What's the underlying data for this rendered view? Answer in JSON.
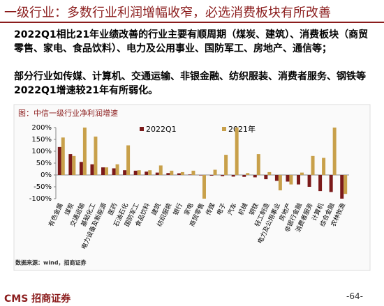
{
  "header": {
    "title": "一级行业：多数行业利润增幅收窄，必选消费板块有所改善"
  },
  "paragraphs": [
    "2022Q1相比21年业绩改善的行业主要有顺周期（煤炭、建筑）、消费板块（商贸零售、家电、食品饮料）、电力及公用事业、国防军工、房地产、通信等；",
    "部分行业如传媒、计算机、交通运输、非银金融、纺织服装、消费者服务、钢铁等2022Q1增速较21年有所弱化。"
  ],
  "chart_data": {
    "type": "bar",
    "title": "图：中信一级行业净利润增速",
    "categories": [
      "有色金属",
      "煤炭",
      "交通运输",
      "基础化工",
      "电力设备及新能源",
      "医药",
      "石油石化",
      "国防军工",
      "食品饮料",
      "建筑",
      "纺织服装",
      "银行",
      "家电",
      "商贸零售",
      "传媒",
      "电子",
      "汽车",
      "机械",
      "钢铁",
      "轻工制造",
      "电力及公用事业",
      "房地产",
      "非银行金融",
      "消费者服务",
      "计算机",
      "综合金融",
      "农林牧渔"
    ],
    "series": [
      {
        "name": "2022Q1",
        "color": "#7b1a1a",
        "values": [
          118,
          88,
          55,
          45,
          32,
          28,
          20,
          18,
          14,
          10,
          8,
          7,
          2,
          -2,
          -3,
          -5,
          -7,
          -8,
          -10,
          -18,
          -25,
          -28,
          -40,
          -50,
          -68,
          -72,
          -100
        ]
      },
      {
        "name": "2021年",
        "color": "#c8a04a",
        "values": [
          158,
          80,
          200,
          162,
          32,
          45,
          125,
          20,
          20,
          40,
          18,
          12,
          18,
          -100,
          22,
          85,
          200,
          8,
          88,
          12,
          -65,
          -40,
          10,
          80,
          72,
          200,
          -80
        ]
      }
    ],
    "ylim": [
      -100,
      200
    ],
    "yticks": [
      {
        "value": -100,
        "label": "-100%"
      },
      {
        "value": -50,
        "label": "-50%"
      },
      {
        "value": 0,
        "label": "0%"
      },
      {
        "value": 50,
        "label": "50%"
      },
      {
        "value": 100,
        "label": "100%"
      },
      {
        "value": 150,
        "label": "150%"
      },
      {
        "value": 200,
        "label": "200%"
      }
    ],
    "source": "数据来源：wind，招商证券"
  },
  "footer": {
    "logo": "CMS",
    "brand": "招商证券",
    "page": "-64-"
  }
}
